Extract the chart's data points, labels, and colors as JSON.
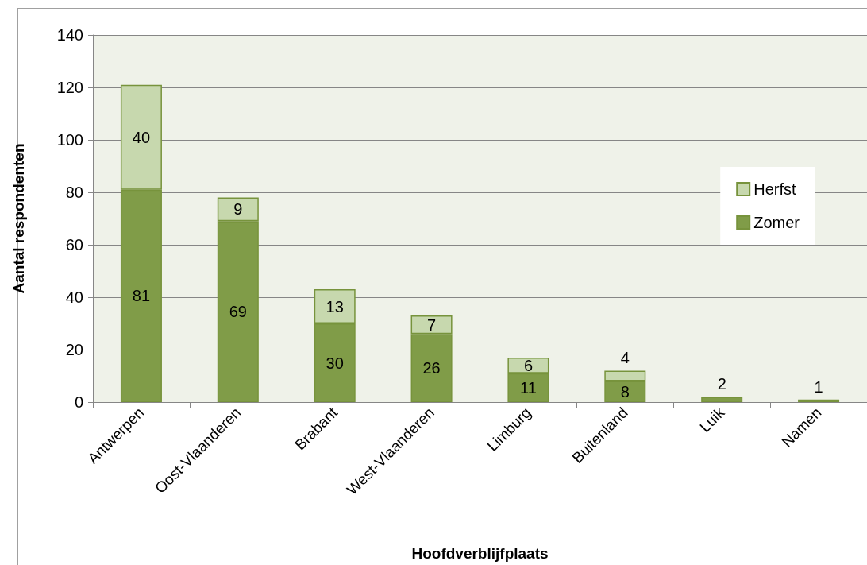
{
  "chart_data": {
    "type": "bar",
    "stacked": true,
    "xlabel": "Hoofdverblijfplaats",
    "ylabel": "Aantal respondenten",
    "categories": [
      "Antwerpen",
      "Oost-Vlaanderen",
      "Brabant",
      "West-Vlaanderen",
      "Limburg",
      "Buitenland",
      "Luik",
      "Namen"
    ],
    "series": [
      {
        "name": "Zomer",
        "color": "#809c48",
        "values": [
          81,
          69,
          30,
          26,
          11,
          8,
          2,
          null
        ]
      },
      {
        "name": "Herfst",
        "color": "#c7d8ae",
        "values": [
          40,
          9,
          13,
          7,
          6,
          4,
          null,
          1
        ]
      }
    ],
    "ylim": [
      0,
      140
    ],
    "yticks": [
      0,
      20,
      40,
      60,
      80,
      100,
      120,
      140
    ],
    "grid": "y",
    "legend": "right",
    "data_labels": true
  }
}
